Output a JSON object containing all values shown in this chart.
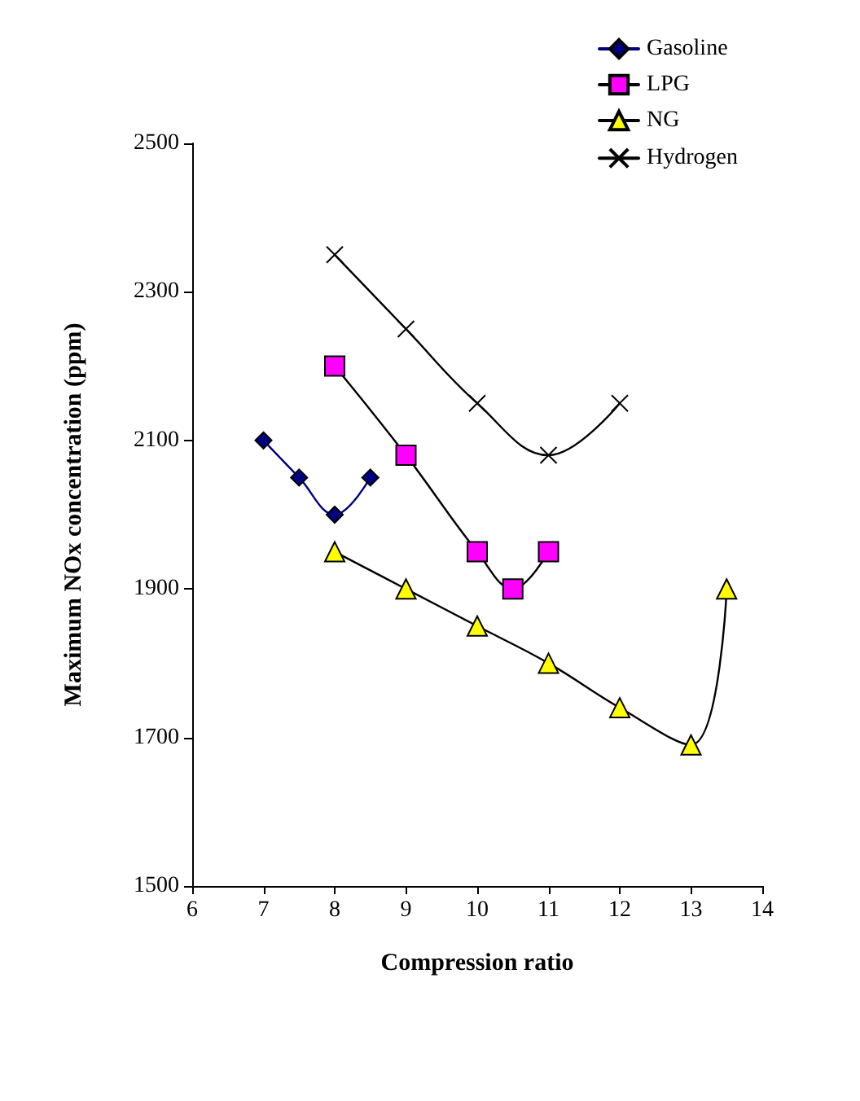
{
  "chart_data": {
    "type": "line",
    "xlabel": "Compression ratio",
    "ylabel": "Maximum NOx concentration (ppm)",
    "xlim": [
      6,
      14
    ],
    "xticks": [
      6,
      7,
      8,
      9,
      10,
      11,
      12,
      13,
      14
    ],
    "ylim": [
      1500,
      2500
    ],
    "yticks": [
      1500,
      1700,
      1900,
      2100,
      2300,
      2500
    ],
    "grid": false,
    "legend": "top right",
    "line_style": "solid",
    "series": [
      {
        "name": "Gasoline",
        "color": "#000080",
        "marker": "diamond",
        "x": [
          7,
          7.5,
          8,
          8.5
        ],
        "values": [
          2100,
          2050,
          2000,
          2050
        ]
      },
      {
        "name": "LPG",
        "color": "#ff00ff",
        "marker": "square",
        "x": [
          8,
          9,
          10,
          10.5,
          11
        ],
        "values": [
          2200,
          2080,
          1950,
          1900,
          1950
        ]
      },
      {
        "name": "NG",
        "color": "#ffff00",
        "marker": "triangle",
        "x": [
          8,
          9,
          10,
          11,
          12,
          13,
          13.5
        ],
        "values": [
          1950,
          1900,
          1850,
          1800,
          1740,
          1690,
          1900
        ]
      },
      {
        "name": "Hydrogen",
        "color": "#000000",
        "marker": "cross",
        "x": [
          8,
          9,
          10,
          11,
          12
        ],
        "values": [
          2350,
          2250,
          2150,
          2080,
          2150
        ]
      }
    ]
  }
}
